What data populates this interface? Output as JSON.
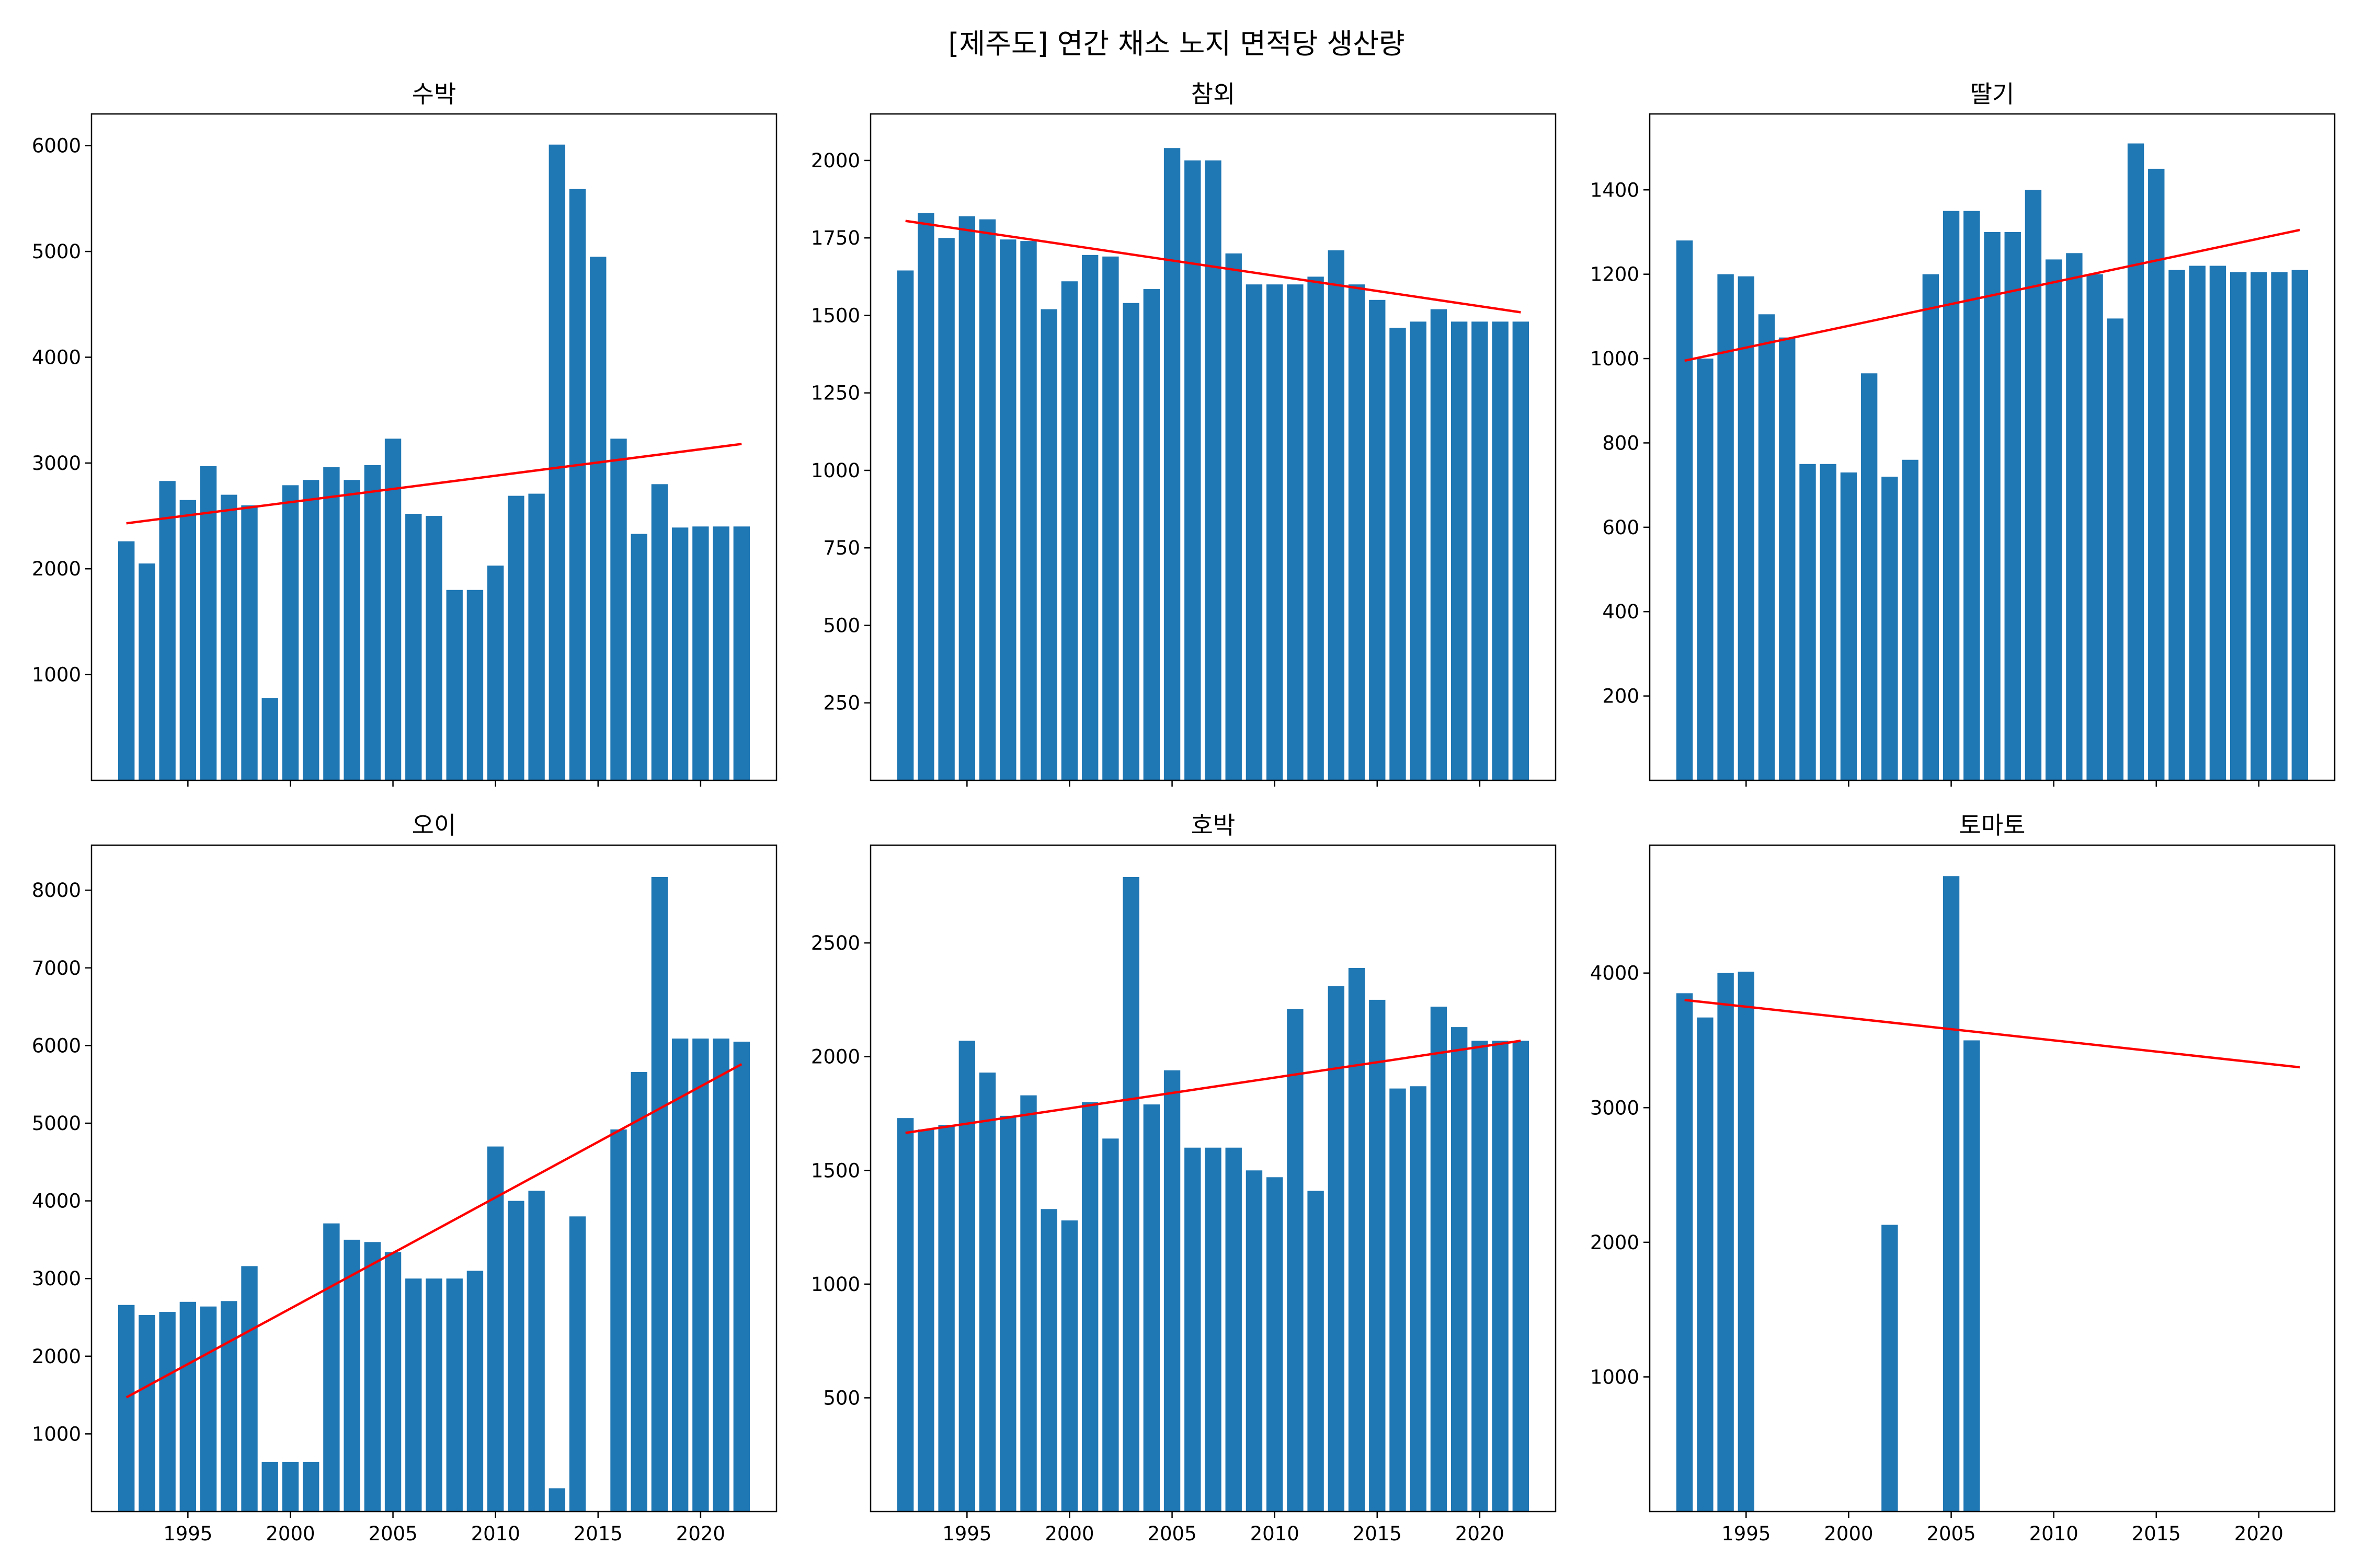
{
  "figure_title": "[제주도] 연간 채소 노지 면적당 생산량",
  "colors": {
    "bar": "#1f77b4",
    "trend": "#ff0000",
    "axis": "#000000",
    "background": "#ffffff"
  },
  "chart_data": [
    {
      "type": "bar",
      "title": "수박",
      "xlabel": "",
      "ylabel": "",
      "xlim": [
        1990.3,
        2023.7
      ],
      "ylim": [
        0,
        6300
      ],
      "x_ticks": [
        1995,
        2000,
        2005,
        2010,
        2015,
        2020
      ],
      "show_x_tick_labels": false,
      "y_ticks": [
        1000,
        2000,
        3000,
        4000,
        5000,
        6000
      ],
      "grid": false,
      "legend": "none",
      "x": [
        1992,
        1993,
        1994,
        1995,
        1996,
        1997,
        1998,
        1999,
        2000,
        2001,
        2002,
        2003,
        2004,
        2005,
        2006,
        2007,
        2008,
        2009,
        2010,
        2011,
        2012,
        2013,
        2014,
        2015,
        2016,
        2017,
        2018,
        2019,
        2020,
        2021,
        2022
      ],
      "values": [
        2260,
        2050,
        2830,
        2650,
        2970,
        2700,
        2600,
        780,
        2790,
        2840,
        2960,
        2840,
        2980,
        3230,
        2520,
        2500,
        1800,
        1800,
        2030,
        2690,
        2710,
        6010,
        5590,
        4950,
        3230,
        2330,
        2800,
        2390,
        2400,
        2400,
        2400
      ],
      "trend": {
        "x": [
          1992,
          2022
        ],
        "y": [
          2430,
          3180
        ]
      }
    },
    {
      "type": "bar",
      "title": "참외",
      "xlabel": "",
      "ylabel": "",
      "xlim": [
        1990.3,
        2023.7
      ],
      "ylim": [
        0,
        2150
      ],
      "x_ticks": [
        1995,
        2000,
        2005,
        2010,
        2015,
        2020
      ],
      "show_x_tick_labels": false,
      "y_ticks": [
        250,
        500,
        750,
        1000,
        1250,
        1500,
        1750,
        2000
      ],
      "grid": false,
      "legend": "none",
      "x": [
        1992,
        1993,
        1994,
        1995,
        1996,
        1997,
        1998,
        1999,
        2000,
        2001,
        2002,
        2003,
        2004,
        2005,
        2006,
        2007,
        2008,
        2009,
        2010,
        2011,
        2012,
        2013,
        2014,
        2015,
        2016,
        2017,
        2018,
        2019,
        2020,
        2021,
        2022
      ],
      "values": [
        1645,
        1830,
        1750,
        1820,
        1810,
        1745,
        1740,
        1520,
        1610,
        1695,
        1690,
        1540,
        1585,
        2040,
        2000,
        2000,
        1700,
        1600,
        1600,
        1600,
        1625,
        1710,
        1600,
        1550,
        1460,
        1480,
        1520,
        1480,
        1480,
        1480,
        1480
      ],
      "trend": {
        "x": [
          1992,
          2022
        ],
        "y": [
          1805,
          1510
        ]
      }
    },
    {
      "type": "bar",
      "title": "딸기",
      "xlabel": "",
      "ylabel": "",
      "xlim": [
        1990.3,
        2023.7
      ],
      "ylim": [
        0,
        1580
      ],
      "x_ticks": [
        1995,
        2000,
        2005,
        2010,
        2015,
        2020
      ],
      "show_x_tick_labels": false,
      "y_ticks": [
        200,
        400,
        600,
        800,
        1000,
        1200,
        1400
      ],
      "grid": false,
      "legend": "none",
      "x": [
        1992,
        1993,
        1994,
        1995,
        1996,
        1997,
        1998,
        1999,
        2000,
        2001,
        2002,
        2003,
        2004,
        2005,
        2006,
        2007,
        2008,
        2009,
        2010,
        2011,
        2012,
        2013,
        2014,
        2015,
        2016,
        2017,
        2018,
        2019,
        2020,
        2021,
        2022
      ],
      "values": [
        1280,
        1000,
        1200,
        1195,
        1105,
        1050,
        750,
        750,
        730,
        965,
        720,
        760,
        1200,
        1350,
        1350,
        1300,
        1300,
        1400,
        1235,
        1250,
        1200,
        1095,
        1510,
        1450,
        1210,
        1220,
        1220,
        1205,
        1205,
        1205,
        1210
      ],
      "trend": {
        "x": [
          1992,
          2022
        ],
        "y": [
          995,
          1305
        ]
      }
    },
    {
      "type": "bar",
      "title": "오이",
      "xlabel": "",
      "ylabel": "",
      "xlim": [
        1990.3,
        2023.7
      ],
      "ylim": [
        0,
        8580
      ],
      "x_ticks": [
        1995,
        2000,
        2005,
        2010,
        2015,
        2020
      ],
      "show_x_tick_labels": true,
      "y_ticks": [
        1000,
        2000,
        3000,
        4000,
        5000,
        6000,
        7000,
        8000
      ],
      "grid": false,
      "legend": "none",
      "x": [
        1992,
        1993,
        1994,
        1995,
        1996,
        1997,
        1998,
        1999,
        2000,
        2001,
        2002,
        2003,
        2004,
        2005,
        2006,
        2007,
        2008,
        2009,
        2010,
        2011,
        2012,
        2013,
        2014,
        2015,
        2016,
        2017,
        2018,
        2019,
        2020,
        2021,
        2022
      ],
      "values": [
        2660,
        2530,
        2570,
        2700,
        2640,
        2710,
        3160,
        640,
        640,
        640,
        3710,
        3500,
        3470,
        3340,
        3000,
        3000,
        3000,
        3100,
        4700,
        4000,
        4130,
        300,
        3800,
        0,
        4920,
        5660,
        8170,
        6090,
        6090,
        6090,
        6050
      ],
      "trend": {
        "x": [
          1992,
          2022
        ],
        "y": [
          1470,
          5760
        ]
      }
    },
    {
      "type": "bar",
      "title": "호박",
      "xlabel": "",
      "ylabel": "",
      "xlim": [
        1990.3,
        2023.7
      ],
      "ylim": [
        0,
        2930
      ],
      "x_ticks": [
        1995,
        2000,
        2005,
        2010,
        2015,
        2020
      ],
      "show_x_tick_labels": true,
      "y_ticks": [
        500,
        1000,
        1500,
        2000,
        2500
      ],
      "grid": false,
      "legend": "none",
      "x": [
        1992,
        1993,
        1994,
        1995,
        1996,
        1997,
        1998,
        1999,
        2000,
        2001,
        2002,
        2003,
        2004,
        2005,
        2006,
        2007,
        2008,
        2009,
        2010,
        2011,
        2012,
        2013,
        2014,
        2015,
        2016,
        2017,
        2018,
        2019,
        2020,
        2021,
        2022
      ],
      "values": [
        1730,
        1680,
        1700,
        2070,
        1930,
        1740,
        1830,
        1330,
        1280,
        1800,
        1640,
        2790,
        1790,
        1940,
        1600,
        1600,
        1600,
        1500,
        1470,
        2210,
        1410,
        2310,
        2390,
        2250,
        1860,
        1870,
        2220,
        2130,
        2070,
        2070,
        2070
      ],
      "trend": {
        "x": [
          1992,
          2022
        ],
        "y": [
          1665,
          2070
        ]
      }
    },
    {
      "type": "bar",
      "title": "토마토",
      "xlabel": "",
      "ylabel": "",
      "xlim": [
        1990.3,
        2023.7
      ],
      "ylim": [
        0,
        4950
      ],
      "x_ticks": [
        1995,
        2000,
        2005,
        2010,
        2015,
        2020
      ],
      "show_x_tick_labels": true,
      "y_ticks": [
        1000,
        2000,
        3000,
        4000
      ],
      "grid": false,
      "legend": "none",
      "x": [
        1992,
        1993,
        1994,
        1995,
        2002,
        2005,
        2006
      ],
      "values": [
        3850,
        3670,
        4000,
        4010,
        2130,
        4720,
        3500
      ],
      "trend": {
        "x": [
          1992,
          2022
        ],
        "y": [
          3800,
          3300
        ]
      }
    }
  ]
}
